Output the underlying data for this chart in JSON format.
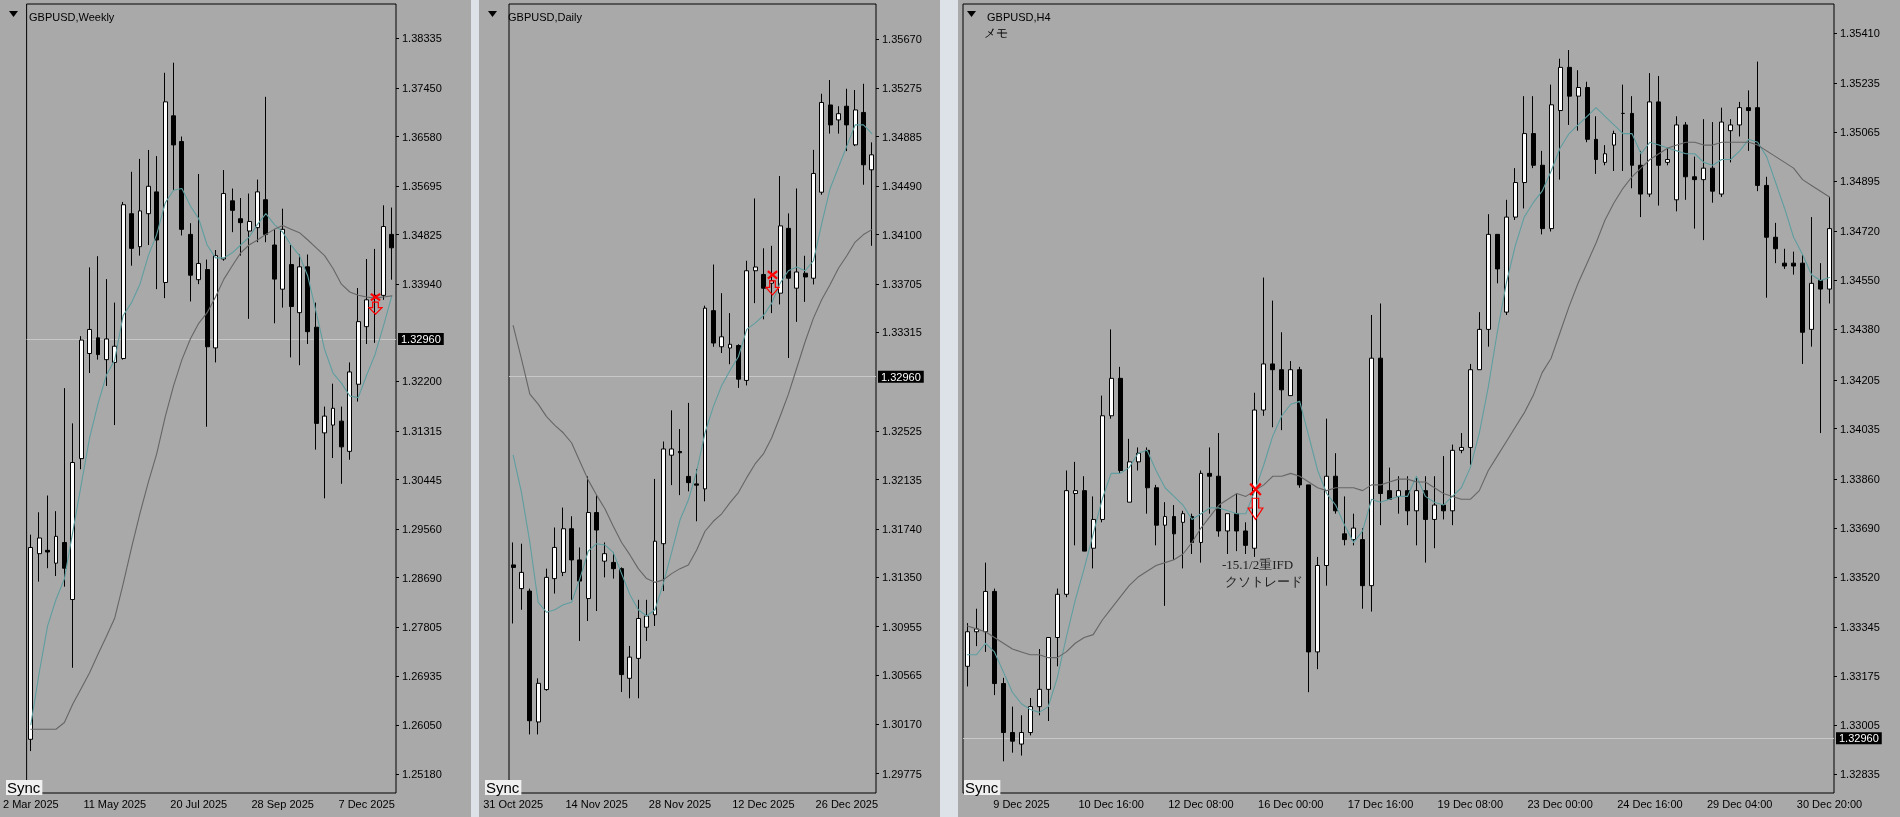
{
  "chart_data": [
    {
      "type": "candlestick",
      "title": "GBPUSD,Weekly",
      "categories": [
        "2 Mar 2025",
        null,
        null,
        null,
        null,
        null,
        null,
        null,
        null,
        null,
        "11 May 2025",
        null,
        null,
        null,
        null,
        null,
        null,
        null,
        null,
        null,
        "20 Jul 2025",
        null,
        null,
        null,
        null,
        null,
        null,
        null,
        null,
        null,
        "28 Sep 2025",
        null,
        null,
        null,
        null,
        null,
        null,
        null,
        null,
        null,
        "7 Dec 2025",
        null,
        null,
        null
      ],
      "ohlc": [
        [
          1.258,
          1.2946,
          1.2559,
          1.2923
        ],
        [
          1.2912,
          1.2986,
          1.2862,
          1.294
        ],
        [
          1.2918,
          1.3016,
          1.2886,
          1.2915
        ],
        [
          1.2895,
          1.2988,
          1.2872,
          1.2943
        ],
        [
          1.2932,
          1.3208,
          1.2853,
          1.2886
        ],
        [
          1.283,
          1.3145,
          1.2708,
          1.3075
        ],
        [
          1.3082,
          1.3301,
          1.3063,
          1.3294
        ],
        [
          1.327,
          1.3424,
          1.3235,
          1.3313
        ],
        [
          1.3298,
          1.3444,
          1.3259,
          1.3268
        ],
        [
          1.3259,
          1.3403,
          1.3212,
          1.3296
        ],
        [
          1.3254,
          1.3361,
          1.3142,
          1.3283
        ],
        [
          1.3261,
          1.3541,
          1.3259,
          1.3536
        ],
        [
          1.352,
          1.3595,
          1.3427,
          1.3458
        ],
        [
          1.3461,
          1.3618,
          1.3445,
          1.3525
        ],
        [
          1.352,
          1.3634,
          1.3464,
          1.3569
        ],
        [
          1.3559,
          1.3623,
          1.3385,
          1.3473
        ],
        [
          1.3397,
          1.3772,
          1.3369,
          1.372
        ],
        [
          1.3695,
          1.379,
          1.3562,
          1.3643
        ],
        [
          1.3649,
          1.3658,
          1.3481,
          1.3492
        ],
        [
          1.3483,
          1.3503,
          1.3363,
          1.341
        ],
        [
          1.3402,
          1.3591,
          1.3394,
          1.3431
        ],
        [
          1.342,
          1.3438,
          1.3139,
          1.3282
        ],
        [
          1.328,
          1.3455,
          1.3254,
          1.3445
        ],
        [
          1.3439,
          1.3598,
          1.3436,
          1.3556
        ],
        [
          1.3543,
          1.3565,
          1.3487,
          1.3526
        ],
        [
          1.3511,
          1.3548,
          1.3445,
          1.3504
        ],
        [
          1.3489,
          1.3556,
          1.3332,
          1.3506
        ],
        [
          1.3495,
          1.3581,
          1.3469,
          1.3559
        ],
        [
          1.3545,
          1.3729,
          1.3469,
          1.3483
        ],
        [
          1.3464,
          1.3492,
          1.3324,
          1.3403
        ],
        [
          1.3385,
          1.3529,
          1.3352,
          1.3492
        ],
        [
          1.3429,
          1.3464,
          1.3263,
          1.3354
        ],
        [
          1.3343,
          1.3447,
          1.3249,
          1.3425
        ],
        [
          1.3425,
          1.3447,
          1.3287,
          1.3309
        ],
        [
          1.3317,
          1.3361,
          1.3098,
          1.3145
        ],
        [
          1.3128,
          1.3175,
          1.3011,
          1.3158
        ],
        [
          1.3142,
          1.3216,
          1.3083,
          1.3172
        ],
        [
          1.3149,
          1.3175,
          1.3037,
          1.3103
        ],
        [
          1.3095,
          1.3254,
          1.308,
          1.3237
        ],
        [
          1.3215,
          1.3387,
          1.3184,
          1.3327
        ],
        [
          1.3318,
          1.3439,
          1.3287,
          1.3366
        ],
        [
          1.3374,
          1.3457,
          1.3289,
          1.337
        ],
        [
          1.3374,
          1.3535,
          1.3366,
          1.3497
        ],
        [
          1.3483,
          1.3531,
          1.3402,
          1.3459
        ]
      ],
      "series": [
        {
          "type": "line",
          "color": "#5f9ea0",
          "values": [
            1.2606,
            1.2699,
            1.2783,
            1.283,
            1.2867,
            1.2951,
            1.3035,
            1.3119,
            1.318,
            1.3231,
            1.3259,
            1.3338,
            1.3361,
            1.3394,
            1.3445,
            1.3483,
            1.3539,
            1.3562,
            1.3565,
            1.3534,
            1.3511,
            1.3464,
            1.3441,
            1.3441,
            1.345,
            1.3464,
            1.3478,
            1.3501,
            1.352,
            1.3501,
            1.3487,
            1.3464,
            1.3445,
            1.3408,
            1.3343,
            1.3277,
            1.3235,
            1.3217,
            1.3194,
            1.3191,
            1.3231,
            1.3268,
            1.3319,
            1.3373
          ]
        },
        {
          "type": "line",
          "color": "#666666",
          "values": [
            1.2598,
            1.2598,
            1.2598,
            1.2598,
            1.261,
            1.2643,
            1.2671,
            1.2699,
            1.2732,
            1.2764,
            1.2797,
            1.2858,
            1.2923,
            1.2984,
            1.304,
            1.3091,
            1.3156,
            1.3212,
            1.3259,
            1.3296,
            1.3324,
            1.3343,
            1.3371,
            1.3403,
            1.3427,
            1.345,
            1.3464,
            1.3473,
            1.3483,
            1.3492,
            1.3499,
            1.3492,
            1.3486,
            1.3473,
            1.3459,
            1.3445,
            1.3422,
            1.3394,
            1.338,
            1.3374,
            1.3371,
            1.3369,
            1.3371,
            1.3373
          ]
        }
      ],
      "ylim": [
        1.2484,
        1.3895
      ],
      "yticks": [
        {
          "value": 1.2518,
          "label": "1.25180"
        },
        {
          "value": 1.2605,
          "label": "1.26050"
        },
        1.26935,
        1.27805,
        {
          "value": 1.2869,
          "label": "1.28690"
        },
        {
          "value": 1.2956,
          "label": "1.29560"
        },
        1.30445,
        1.31315,
        {
          "value": 1.322,
          "label": "1.32200"
        },
        {
          "value": 1.3394,
          "label": "1.33940"
        },
        1.34825,
        1.35695,
        {
          "value": 1.3658,
          "label": "1.36580"
        },
        {
          "value": 1.3745,
          "label": "1.37450"
        },
        1.38335
      ],
      "ref_lines": [
        {
          "axis": "y",
          "value": 1.3296,
          "label": "1.32960",
          "color": "#c8c8c8"
        }
      ],
      "annotations": [
        "Sync"
      ]
    },
    {
      "type": "candlestick",
      "title": "GBPUSD,Daily",
      "categories": [
        "31 Oct 2025",
        null,
        null,
        null,
        null,
        null,
        null,
        null,
        null,
        null,
        "14 Nov 2025",
        null,
        null,
        null,
        null,
        null,
        null,
        null,
        null,
        null,
        "28 Nov 2025",
        null,
        null,
        null,
        null,
        null,
        null,
        null,
        null,
        null,
        "12 Dec 2025",
        null,
        null,
        null,
        null,
        null,
        null,
        null,
        null,
        null,
        "26 Dec 2025",
        null,
        null,
        null
      ],
      "ohlc": [
        [
          1.3145,
          1.3163,
          1.3098,
          1.3143
        ],
        [
          1.3126,
          1.3162,
          1.3109,
          1.3139
        ],
        [
          1.3124,
          1.3126,
          1.3009,
          1.302
        ],
        [
          1.3019,
          1.3054,
          1.3009,
          1.305
        ],
        [
          1.3045,
          1.3142,
          1.3044,
          1.3135
        ],
        [
          1.3134,
          1.3175,
          1.3122,
          1.3159
        ],
        [
          1.3139,
          1.3191,
          1.3136,
          1.3174
        ],
        [
          1.3174,
          1.3184,
          1.3117,
          1.3149
        ],
        [
          1.3149,
          1.3159,
          1.3084,
          1.3132
        ],
        [
          1.3118,
          1.3216,
          1.31,
          1.3187
        ],
        [
          1.3187,
          1.3201,
          1.3108,
          1.3173
        ],
        [
          1.3148,
          1.3163,
          1.3135,
          1.3154
        ],
        [
          1.3147,
          1.3155,
          1.3134,
          1.3142
        ],
        [
          1.3142,
          1.3143,
          1.3043,
          1.3057
        ],
        [
          1.3054,
          1.308,
          1.3038,
          1.3071
        ],
        [
          1.307,
          1.3117,
          1.3038,
          1.3102
        ],
        [
          1.3095,
          1.3117,
          1.3084,
          1.3104
        ],
        [
          1.3105,
          1.3214,
          1.3096,
          1.3164
        ],
        [
          1.3162,
          1.3244,
          1.3124,
          1.3238
        ],
        [
          1.3233,
          1.3269,
          1.3209,
          1.3238
        ],
        [
          1.3236,
          1.3254,
          1.3201,
          1.3235
        ],
        [
          1.3216,
          1.3275,
          1.3204,
          1.3211
        ],
        [
          1.321,
          1.3222,
          1.318,
          1.3209
        ],
        [
          1.3206,
          1.3353,
          1.3196,
          1.3351
        ],
        [
          1.3349,
          1.3386,
          1.332,
          1.3323
        ],
        [
          1.332,
          1.3363,
          1.3315,
          1.3328
        ],
        [
          1.3319,
          1.3347,
          1.3306,
          1.3322
        ],
        [
          1.3321,
          1.3322,
          1.3287,
          1.3294
        ],
        [
          1.3293,
          1.3389,
          1.3289,
          1.3381
        ],
        [
          1.3381,
          1.3439,
          1.3355,
          1.3384
        ],
        [
          1.3378,
          1.3399,
          1.3342,
          1.3367
        ],
        [
          1.3371,
          1.3401,
          1.3347,
          1.3373
        ],
        [
          1.3363,
          1.3457,
          1.3354,
          1.3417
        ],
        [
          1.3415,
          1.3427,
          1.3311,
          1.3375
        ],
        [
          1.3367,
          1.3447,
          1.334,
          1.338
        ],
        [
          1.3379,
          1.3393,
          1.3356,
          1.3376
        ],
        [
          1.3375,
          1.3478,
          1.337,
          1.3459
        ],
        [
          1.3444,
          1.3523,
          1.3442,
          1.3516
        ],
        [
          1.3514,
          1.3534,
          1.3491,
          1.3498
        ],
        [
          1.3502,
          1.3513,
          1.3491,
          1.3507
        ],
        [
          1.3513,
          1.3527,
          1.3477,
          1.3498
        ],
        [
          1.3482,
          1.3526,
          1.3481,
          1.351
        ],
        [
          1.3508,
          1.3531,
          1.345,
          1.3466
        ],
        [
          1.3462,
          1.3484,
          1.3401,
          1.3474
        ]
      ],
      "series": [
        {
          "type": "line",
          "color": "#5f9ea0",
          "values": [
            1.3233,
            1.3203,
            1.3163,
            1.3115,
            1.3107,
            1.3109,
            1.3113,
            1.3115,
            1.3134,
            1.3156,
            1.3162,
            1.3161,
            1.3155,
            1.3138,
            1.3121,
            1.3109,
            1.3104,
            1.3109,
            1.313,
            1.3155,
            1.3181,
            1.3197,
            1.322,
            1.3251,
            1.3272,
            1.3289,
            1.3301,
            1.3312,
            1.3334,
            1.3339,
            1.3345,
            1.3355,
            1.3371,
            1.3381,
            1.3384,
            1.3381,
            1.3389,
            1.3419,
            1.3447,
            1.3464,
            1.3481,
            1.3498,
            1.3498,
            1.3491
          ]
        },
        {
          "type": "line",
          "color": "#666666",
          "values": [
            1.3337,
            1.331,
            1.3282,
            1.3274,
            1.3264,
            1.3257,
            1.3251,
            1.3243,
            1.3228,
            1.3213,
            1.3201,
            1.319,
            1.3176,
            1.3163,
            1.3153,
            1.3142,
            1.3134,
            1.3131,
            1.3133,
            1.3138,
            1.3142,
            1.3145,
            1.3157,
            1.3172,
            1.318,
            1.3186,
            1.3195,
            1.3203,
            1.3215,
            1.3226,
            1.3234,
            1.3247,
            1.3264,
            1.3282,
            1.3303,
            1.3324,
            1.3343,
            1.3358,
            1.337,
            1.3383,
            1.3393,
            1.3404,
            1.341,
            1.3414
          ]
        }
      ],
      "ylim": [
        1.2962,
        1.3595
      ],
      "yticks": [
        1.29775,
        {
          "value": 1.3017,
          "label": "1.30170"
        },
        1.30565,
        1.30955,
        {
          "value": 1.3135,
          "label": "1.31350"
        },
        {
          "value": 1.3174,
          "label": "1.31740"
        },
        1.32135,
        1.32525,
        1.33315,
        1.33705,
        {
          "value": 1.341,
          "label": "1.34100"
        },
        {
          "value": 1.3449,
          "label": "1.34490"
        },
        1.34885,
        1.35275,
        {
          "value": 1.3567,
          "label": "1.35670"
        }
      ],
      "ref_lines": [
        {
          "axis": "y",
          "value": 1.3296,
          "label": "1.32960",
          "color": "#c8c8c8"
        }
      ],
      "annotations": [
        "Sync"
      ]
    },
    {
      "type": "candlestick",
      "title": "GBPUSD,H4",
      "categories": [
        null,
        null,
        null,
        null,
        null,
        null,
        "9 Dec 2025",
        null,
        null,
        null,
        null,
        null,
        null,
        null,
        null,
        null,
        "10 Dec 16:00",
        null,
        null,
        null,
        null,
        null,
        null,
        null,
        null,
        null,
        "12 Dec 08:00",
        null,
        null,
        null,
        null,
        null,
        null,
        null,
        null,
        null,
        "16 Dec 00:00",
        null,
        null,
        null,
        null,
        null,
        null,
        null,
        null,
        null,
        "17 Dec 16:00",
        null,
        null,
        null,
        null,
        null,
        null,
        null,
        null,
        null,
        "19 Dec 08:00",
        null,
        null,
        null,
        null,
        null,
        null,
        null,
        null,
        null,
        "23 Dec 00:00",
        null,
        null,
        null,
        null,
        null,
        null,
        null,
        null,
        null,
        "24 Dec 16:00",
        null,
        null,
        null,
        null,
        null,
        null,
        null,
        null,
        null,
        "29 Dec 04:00",
        null,
        null,
        null,
        null,
        null,
        null,
        null,
        null,
        null,
        "30 Dec 20:00"
      ],
      "ohlc": [
        [
          1.3321,
          1.3336,
          1.3314,
          1.3333
        ],
        [
          1.3333,
          1.3341,
          1.3328,
          1.3334
        ],
        [
          1.3333,
          1.3357,
          1.3326,
          1.3347
        ],
        [
          1.3347,
          1.3348,
          1.3311,
          1.3315
        ],
        [
          1.3315,
          1.3317,
          1.3288,
          1.3298
        ],
        [
          1.3298,
          1.3307,
          1.3291,
          1.3295
        ],
        [
          1.3294,
          1.3304,
          1.329,
          1.3298
        ],
        [
          1.3298,
          1.331,
          1.3297,
          1.3307
        ],
        [
          1.3307,
          1.3327,
          1.3304,
          1.3313
        ],
        [
          1.3313,
          1.3331,
          1.3302,
          1.3331
        ],
        [
          1.3331,
          1.3348,
          1.3321,
          1.3346
        ],
        [
          1.3346,
          1.3389,
          1.3345,
          1.3382
        ],
        [
          1.3381,
          1.3392,
          1.3363,
          1.3382
        ],
        [
          1.3382,
          1.3387,
          1.3361,
          1.3361
        ],
        [
          1.3362,
          1.338,
          1.3355,
          1.3372
        ],
        [
          1.3372,
          1.3415,
          1.3371,
          1.3408
        ],
        [
          1.3408,
          1.3438,
          1.3407,
          1.3421
        ],
        [
          1.3421,
          1.3425,
          1.3388,
          1.3389
        ],
        [
          1.3378,
          1.34,
          1.3378,
          1.3392
        ],
        [
          1.3392,
          1.3397,
          1.3389,
          1.3395
        ],
        [
          1.3396,
          1.3397,
          1.3374,
          1.3383
        ],
        [
          1.3383,
          1.3384,
          1.3363,
          1.337
        ],
        [
          1.337,
          1.3378,
          1.3342,
          1.3373
        ],
        [
          1.3373,
          1.3377,
          1.3358,
          1.3367
        ],
        [
          1.3371,
          1.3375,
          1.3355,
          1.3374
        ],
        [
          1.3373,
          1.3374,
          1.336,
          1.3364
        ],
        [
          1.3364,
          1.3389,
          1.3357,
          1.3388
        ],
        [
          1.3388,
          1.3397,
          1.3374,
          1.3387
        ],
        [
          1.3387,
          1.3402,
          1.3366,
          1.3368
        ],
        [
          1.3368,
          1.3374,
          1.336,
          1.3374
        ],
        [
          1.3374,
          1.3381,
          1.3361,
          1.3368
        ],
        [
          1.3368,
          1.3371,
          1.336,
          1.3363
        ],
        [
          1.3362,
          1.3416,
          1.3359,
          1.341
        ],
        [
          1.341,
          1.3456,
          1.3408,
          1.3426
        ],
        [
          1.3426,
          1.3448,
          1.3404,
          1.3424
        ],
        [
          1.3424,
          1.3437,
          1.3403,
          1.3417
        ],
        [
          1.3415,
          1.3427,
          1.3415,
          1.3424
        ],
        [
          1.3424,
          1.3425,
          1.3383,
          1.3384
        ],
        [
          1.3384,
          1.3384,
          1.3312,
          1.3326
        ],
        [
          1.3326,
          1.3359,
          1.332,
          1.3356
        ],
        [
          1.3356,
          1.3407,
          1.3349,
          1.3387
        ],
        [
          1.3387,
          1.3395,
          1.3374,
          1.3375
        ],
        [
          1.3367,
          1.338,
          1.3363,
          1.3365
        ],
        [
          1.3365,
          1.3374,
          1.3363,
          1.3369
        ],
        [
          1.3365,
          1.3369,
          1.3341,
          1.3349
        ],
        [
          1.3349,
          1.3443,
          1.334,
          1.3428
        ],
        [
          1.3428,
          1.3447,
          1.337,
          1.3381
        ],
        [
          1.3382,
          1.339,
          1.3379,
          1.3379
        ],
        [
          1.338,
          1.3387,
          1.3374,
          1.3382
        ],
        [
          1.3382,
          1.3387,
          1.337,
          1.3375
        ],
        [
          1.3375,
          1.3387,
          1.3363,
          1.3382
        ],
        [
          1.3382,
          1.3387,
          1.3357,
          1.3372
        ],
        [
          1.3372,
          1.3387,
          1.3362,
          1.3377
        ],
        [
          1.3377,
          1.3394,
          1.3372,
          1.3375
        ],
        [
          1.3375,
          1.3398,
          1.337,
          1.3396
        ],
        [
          1.3396,
          1.3402,
          1.3395,
          1.3397
        ],
        [
          1.3397,
          1.3426,
          1.3391,
          1.3424
        ],
        [
          1.3424,
          1.3444,
          1.3424,
          1.3438
        ],
        [
          1.3438,
          1.3478,
          1.3432,
          1.3471
        ],
        [
          1.3471,
          1.3471,
          1.3454,
          1.3459
        ],
        [
          1.3444,
          1.3483,
          1.3443,
          1.3477
        ],
        [
          1.3477,
          1.3494,
          1.3476,
          1.3489
        ],
        [
          1.3489,
          1.3519,
          1.348,
          1.3506
        ],
        [
          1.3506,
          1.3519,
          1.3494,
          1.3495
        ],
        [
          1.3495,
          1.35,
          1.3471,
          1.3473
        ],
        [
          1.3473,
          1.3523,
          1.3472,
          1.3516
        ],
        [
          1.3514,
          1.3532,
          1.349,
          1.3529
        ],
        [
          1.3529,
          1.3535,
          1.3509,
          1.3519
        ],
        [
          1.3519,
          1.3528,
          1.3507,
          1.3522
        ],
        [
          1.3522,
          1.3524,
          1.3503,
          1.3504
        ],
        [
          1.3504,
          1.3512,
          1.3492,
          1.3497
        ],
        [
          1.3496,
          1.3502,
          1.3495,
          1.3499
        ],
        [
          1.3502,
          1.3507,
          1.3493,
          1.3506
        ],
        [
          1.3513,
          1.3523,
          1.3493,
          1.3513
        ],
        [
          1.3513,
          1.3519,
          1.3487,
          1.3495
        ],
        [
          1.3495,
          1.35,
          1.3477,
          1.3485
        ],
        [
          1.3485,
          1.3527,
          1.3484,
          1.3517
        ],
        [
          1.3517,
          1.3526,
          1.3481,
          1.3495
        ],
        [
          1.3496,
          1.3501,
          1.3495,
          1.3497
        ],
        [
          1.3483,
          1.3512,
          1.3479,
          1.3509
        ],
        [
          1.3509,
          1.351,
          1.3483,
          1.3491
        ],
        [
          1.3491,
          1.3498,
          1.3473,
          1.349
        ],
        [
          1.349,
          1.3511,
          1.3469,
          1.3494
        ],
        [
          1.3494,
          1.351,
          1.3482,
          1.3486
        ],
        [
          1.3485,
          1.3515,
          1.3484,
          1.351
        ],
        [
          1.3507,
          1.3511,
          1.3496,
          1.3509
        ],
        [
          1.3509,
          1.3517,
          1.3505,
          1.3515
        ],
        [
          1.3515,
          1.3521,
          1.35,
          1.3514
        ],
        [
          1.3515,
          1.3531,
          1.3486,
          1.3488
        ],
        [
          1.3488,
          1.3491,
          1.3449,
          1.347
        ],
        [
          1.347,
          1.3475,
          1.3461,
          1.3466
        ],
        [
          1.3461,
          1.3466,
          1.3459,
          1.346
        ],
        [
          1.3461,
          1.3465,
          1.3457,
          1.346
        ],
        [
          1.3461,
          1.3464,
          1.3426,
          1.3437
        ],
        [
          1.3438,
          1.3477,
          1.3432,
          1.3454
        ],
        [
          1.3455,
          1.3461,
          1.3402,
          1.3452
        ],
        [
          1.3452,
          1.3484,
          1.3447,
          1.3473
        ]
      ],
      "series": [
        {
          "type": "line",
          "color": "#5f9ea0",
          "values": [
            1.3325,
            1.3325,
            1.3329,
            1.3326,
            1.3319,
            1.3312,
            1.3308,
            1.3306,
            1.3305,
            1.3307,
            1.3317,
            1.3331,
            1.3344,
            1.3355,
            1.3367,
            1.3379,
            1.3388,
            1.3388,
            1.339,
            1.3395,
            1.3396,
            1.3389,
            1.3383,
            1.338,
            1.3377,
            1.3372,
            1.3374,
            1.3376,
            1.3376,
            1.3375,
            1.3374,
            1.3374,
            1.3382,
            1.3391,
            1.3401,
            1.3408,
            1.3412,
            1.3413,
            1.3401,
            1.3389,
            1.3381,
            1.3377,
            1.337,
            1.3364,
            1.3368,
            1.3379,
            1.3378,
            1.3379,
            1.338,
            1.338,
            1.3387,
            1.338,
            1.3378,
            1.3377,
            1.338,
            1.3383,
            1.339,
            1.3402,
            1.3418,
            1.3437,
            1.3454,
            1.3467,
            1.3477,
            1.3482,
            1.3486,
            1.3493,
            1.3501,
            1.3506,
            1.3509,
            1.3512,
            1.3515,
            1.3512,
            1.3509,
            1.3506,
            1.3506,
            1.3499,
            1.3503,
            1.3502,
            1.3501,
            1.35,
            1.3499,
            1.3499,
            1.3496,
            1.3495,
            1.3497,
            1.3497,
            1.35,
            1.3504,
            1.3503,
            1.3498,
            1.3489,
            1.348,
            1.347,
            1.3464,
            1.3457,
            1.3455,
            1.3456
          ]
        },
        {
          "type": "line",
          "color": "#666666",
          "values": [
            1.3335,
            1.3334,
            1.3333,
            1.3331,
            1.3329,
            1.3327,
            1.3326,
            1.3325,
            1.3325,
            1.3324,
            1.3324,
            1.3326,
            1.3329,
            1.3331,
            1.3332,
            1.3337,
            1.3341,
            1.3345,
            1.3349,
            1.3352,
            1.3354,
            1.3356,
            1.3357,
            1.3358,
            1.336,
            1.3364,
            1.3369,
            1.3373,
            1.3377,
            1.3379,
            1.3381,
            1.338,
            1.3382,
            1.3384,
            1.3387,
            1.3387,
            1.3388,
            1.3387,
            1.3385,
            1.3383,
            1.3382,
            1.3383,
            1.3383,
            1.3383,
            1.3382,
            1.3384,
            1.3384,
            1.3385,
            1.3386,
            1.3386,
            1.3385,
            1.3385,
            1.3383,
            1.3381,
            1.338,
            1.3379,
            1.3379,
            1.3382,
            1.3389,
            1.3394,
            1.3399,
            1.3404,
            1.3409,
            1.3415,
            1.3423,
            1.3428,
            1.3437,
            1.3446,
            1.3454,
            1.3461,
            1.3468,
            1.3476,
            1.3482,
            1.3487,
            1.3491,
            1.3494,
            1.3497,
            1.3499,
            1.3501,
            1.3502,
            1.3503,
            1.3503,
            1.3502,
            1.3502,
            1.3503,
            1.3503,
            1.3503,
            1.3503,
            1.3502,
            1.35,
            1.3498,
            1.3496,
            1.3494,
            1.349,
            1.3488,
            1.3486,
            1.3484
          ]
        }
      ],
      "ylim": [
        1.3277,
        1.3551
      ],
      "yticks": [
        1.32835,
        1.33005,
        1.33175,
        1.33345,
        {
          "value": 1.3352,
          "label": "1.33520"
        },
        {
          "value": 1.3369,
          "label": "1.33690"
        },
        {
          "value": 1.3386,
          "label": "1.33860"
        },
        1.34035,
        1.34205,
        {
          "value": 1.3438,
          "label": "1.34380"
        },
        {
          "value": 1.3455,
          "label": "1.34550"
        },
        {
          "value": 1.3472,
          "label": "1.34720"
        },
        1.34895,
        1.35065,
        1.35235,
        {
          "value": 1.3541,
          "label": "1.35410"
        }
      ],
      "ref_lines": [
        {
          "axis": "y",
          "value": 1.3296,
          "label": "1.32960",
          "color": "#c8c8c8"
        }
      ],
      "annotations": [
        "メモ",
        "-15.1/2重IFD",
        "クソトレード",
        "Sync"
      ]
    }
  ]
}
